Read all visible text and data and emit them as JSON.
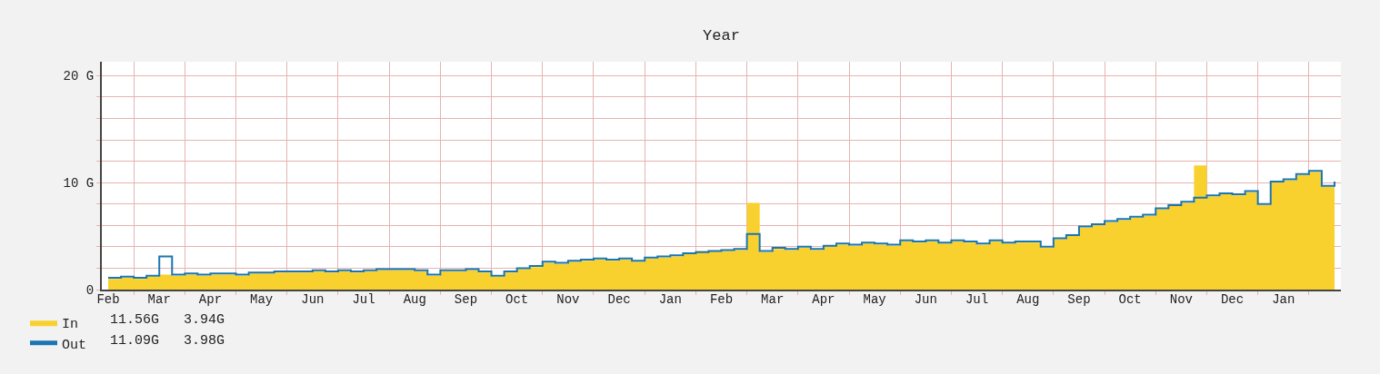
{
  "chart_data": {
    "type": "area",
    "title": "Year",
    "categories": [
      "Feb",
      null,
      null,
      null,
      "Mar",
      null,
      null,
      null,
      "Apr",
      null,
      null,
      null,
      "May",
      null,
      null,
      null,
      "Jun",
      null,
      null,
      null,
      "Jul",
      null,
      null,
      null,
      "Aug",
      null,
      null,
      null,
      "Sep",
      null,
      null,
      null,
      "Oct",
      null,
      null,
      null,
      "Nov",
      null,
      null,
      null,
      "Dec",
      null,
      null,
      null,
      "Jan",
      null,
      null,
      null,
      "Feb",
      null,
      null,
      null,
      "Mar",
      null,
      null,
      null,
      "Apr",
      null,
      null,
      null,
      "May",
      null,
      null,
      null,
      "Jun",
      null,
      null,
      null,
      "Jul",
      null,
      null,
      null,
      "Aug",
      null,
      null,
      null,
      "Sep",
      null,
      null,
      null,
      "Oct",
      null,
      null,
      null,
      "Nov",
      null,
      null,
      null,
      "Dec",
      null,
      null,
      null,
      "Jan",
      null,
      null,
      null,
      null
    ],
    "series": [
      {
        "name": "In",
        "color": "#f8d12e",
        "values": [
          1.0,
          1.1,
          1.0,
          1.2,
          1.4,
          1.3,
          1.4,
          1.3,
          1.4,
          1.4,
          1.3,
          1.5,
          1.5,
          1.6,
          1.6,
          1.6,
          1.7,
          1.6,
          1.7,
          1.6,
          1.7,
          1.8,
          1.8,
          1.8,
          1.7,
          1.3,
          1.7,
          1.7,
          1.8,
          1.6,
          1.2,
          1.6,
          1.9,
          2.1,
          2.5,
          2.4,
          2.6,
          2.7,
          2.8,
          2.7,
          2.8,
          2.6,
          2.9,
          3.0,
          3.1,
          3.3,
          3.6,
          3.6,
          3.6,
          3.7,
          8.1,
          3.5,
          3.8,
          3.7,
          3.9,
          3.7,
          4.0,
          4.2,
          4.1,
          4.3,
          4.2,
          4.1,
          4.5,
          4.4,
          4.5,
          4.3,
          4.5,
          4.4,
          4.2,
          4.5,
          4.3,
          4.4,
          4.4,
          3.9,
          4.7,
          5.0,
          5.8,
          6.0,
          6.3,
          6.5,
          6.7,
          6.9,
          7.5,
          7.8,
          8.1,
          11.6,
          8.7,
          8.9,
          8.8,
          9.1,
          7.9,
          10.0,
          10.2,
          10.7,
          11.0,
          9.6,
          10.0
        ]
      },
      {
        "name": "Out",
        "type": "step",
        "color": "#1a76b0",
        "values": [
          1.1,
          1.2,
          1.1,
          1.3,
          3.1,
          1.4,
          1.5,
          1.4,
          1.5,
          1.5,
          1.4,
          1.6,
          1.6,
          1.7,
          1.7,
          1.7,
          1.8,
          1.7,
          1.8,
          1.7,
          1.8,
          1.9,
          1.9,
          1.9,
          1.8,
          1.4,
          1.8,
          1.8,
          1.9,
          1.7,
          1.3,
          1.7,
          2.0,
          2.2,
          2.6,
          2.5,
          2.7,
          2.8,
          2.9,
          2.8,
          2.9,
          2.7,
          3.0,
          3.1,
          3.2,
          3.4,
          3.5,
          3.6,
          3.7,
          3.8,
          5.2,
          3.6,
          3.9,
          3.8,
          4.0,
          3.8,
          4.1,
          4.3,
          4.2,
          4.4,
          4.3,
          4.2,
          4.6,
          4.5,
          4.6,
          4.4,
          4.6,
          4.5,
          4.3,
          4.6,
          4.4,
          4.5,
          4.5,
          4.0,
          4.8,
          5.1,
          5.9,
          6.1,
          6.4,
          6.6,
          6.8,
          7.0,
          7.6,
          7.9,
          8.2,
          8.6,
          8.8,
          9.0,
          8.9,
          9.2,
          8.0,
          10.1,
          10.3,
          10.8,
          11.1,
          9.7,
          10.1
        ]
      }
    ],
    "ylim": [
      0,
      21.3
    ],
    "yticks": [
      0,
      {
        "value": 2,
        "label": null
      },
      {
        "value": 4,
        "label": null
      },
      {
        "value": 6,
        "label": null
      },
      {
        "value": 8,
        "label": null
      },
      {
        "value": 10,
        "label": "10 G"
      },
      {
        "value": 12,
        "label": null
      },
      {
        "value": 14,
        "label": null
      },
      {
        "value": 16,
        "label": null
      },
      {
        "value": 18,
        "label": null
      },
      {
        "value": 20,
        "label": "20 G"
      }
    ],
    "grid": true,
    "legend": "bottom left",
    "annotations": [
      "11.56G   3.94G",
      "11.09G   3.98G"
    ]
  }
}
